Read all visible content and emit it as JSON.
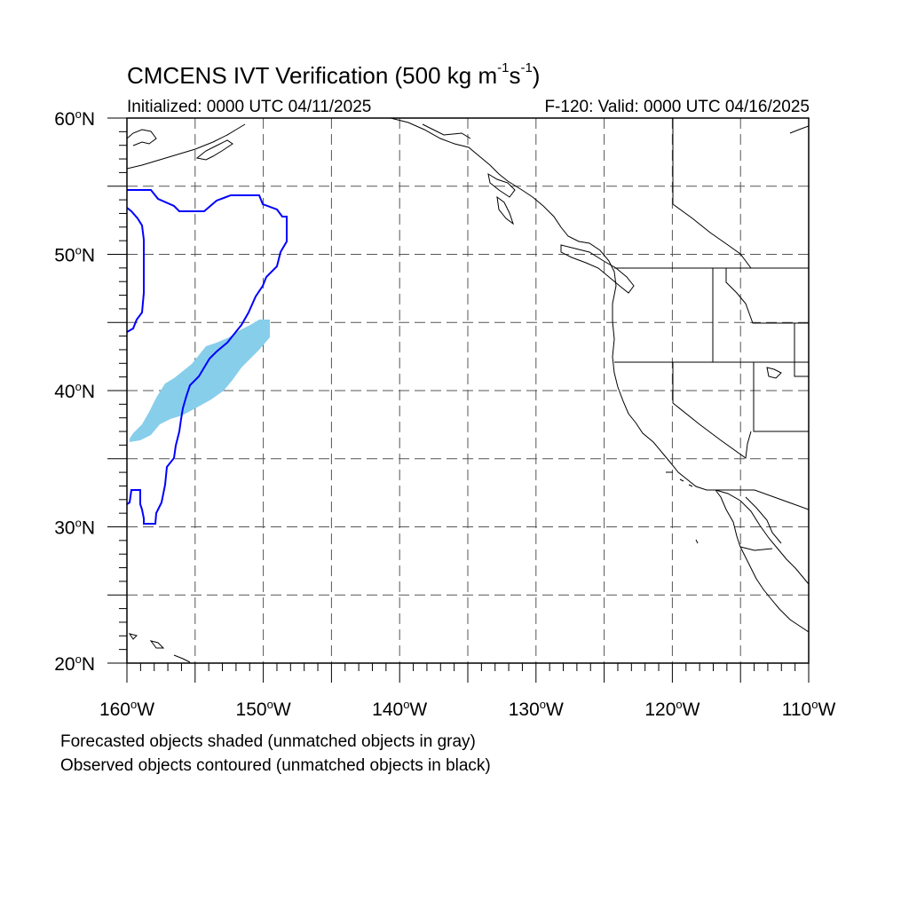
{
  "header": {
    "title_main": "CMCENS IVT Verification (500 kg m",
    "title_exp1": "-1",
    "title_mid": "s",
    "title_exp2": "-1",
    "title_end": ")",
    "initialized": "Initialized: 0000 UTC 04/11/2025",
    "valid": "F-120: Valid: 0000 UTC 04/16/2025"
  },
  "axes": {
    "lat_labels": [
      {
        "value": 60,
        "num": "60",
        "unit": "N"
      },
      {
        "value": 50,
        "num": "50",
        "unit": "N"
      },
      {
        "value": 40,
        "num": "40",
        "unit": "N"
      },
      {
        "value": 30,
        "num": "30",
        "unit": "N"
      },
      {
        "value": 20,
        "num": "20",
        "unit": "N"
      }
    ],
    "lon_labels": [
      {
        "value": -160,
        "num": "160",
        "unit": "W"
      },
      {
        "value": -150,
        "num": "150",
        "unit": "W"
      },
      {
        "value": -140,
        "num": "140",
        "unit": "W"
      },
      {
        "value": -130,
        "num": "130",
        "unit": "W"
      },
      {
        "value": -120,
        "num": "120",
        "unit": "W"
      },
      {
        "value": -110,
        "num": "110",
        "unit": "W"
      }
    ],
    "lat_range": [
      20,
      60
    ],
    "lon_range": [
      -160,
      -110
    ],
    "grid_lats": [
      25,
      30,
      35,
      40,
      45,
      50,
      55
    ],
    "grid_lons": [
      -155,
      -150,
      -145,
      -140,
      -135,
      -130,
      -125,
      -120,
      -115
    ]
  },
  "legend": {
    "forecast_note": "Forecasted objects shaded (unmatched objects in gray)",
    "observed_note": "Observed objects contoured (unmatched objects in black)"
  },
  "colors": {
    "forecast_fill": "#87ceeb",
    "observed_contour": "#0000ff",
    "coastline": "#000000",
    "grid": "#555555"
  }
}
